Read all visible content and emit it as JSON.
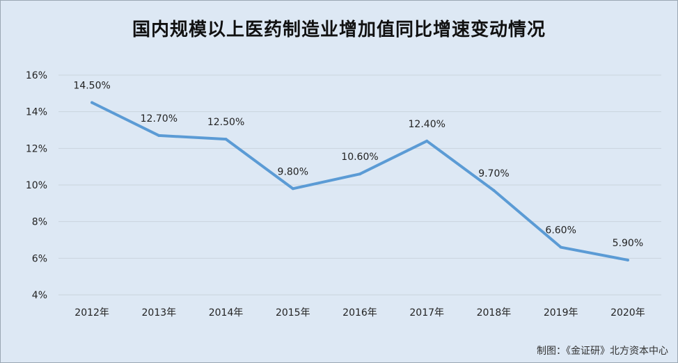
{
  "chart_data": {
    "type": "line",
    "title": "国内规模以上医药制造业增加值同比增速变动情况",
    "categories": [
      "2012年",
      "2013年",
      "2014年",
      "2015年",
      "2016年",
      "2017年",
      "2018年",
      "2019年",
      "2020年"
    ],
    "series": [
      {
        "values": [
          14.5,
          12.7,
          12.5,
          9.8,
          10.6,
          12.4,
          9.7,
          6.6,
          5.9
        ],
        "labels": [
          "14.50%",
          "12.70%",
          "12.50%",
          "9.80%",
          "10.60%",
          "12.40%",
          "9.70%",
          "6.60%",
          "5.90%"
        ],
        "color": "#5b9bd5"
      }
    ],
    "ylim": [
      4,
      16
    ],
    "yticks": [
      4,
      6,
      8,
      10,
      12,
      14,
      16
    ],
    "ytick_labels": [
      "4%",
      "6%",
      "8%",
      "10%",
      "12%",
      "14%",
      "16%"
    ],
    "grid": true,
    "xlabel": "",
    "ylabel": ""
  },
  "footer": {
    "credit": "制图：《金证研》北方资本中心"
  },
  "colors": {
    "background": "#dde8f4",
    "grid": "#c9d3dd",
    "line": "#5b9bd5"
  }
}
